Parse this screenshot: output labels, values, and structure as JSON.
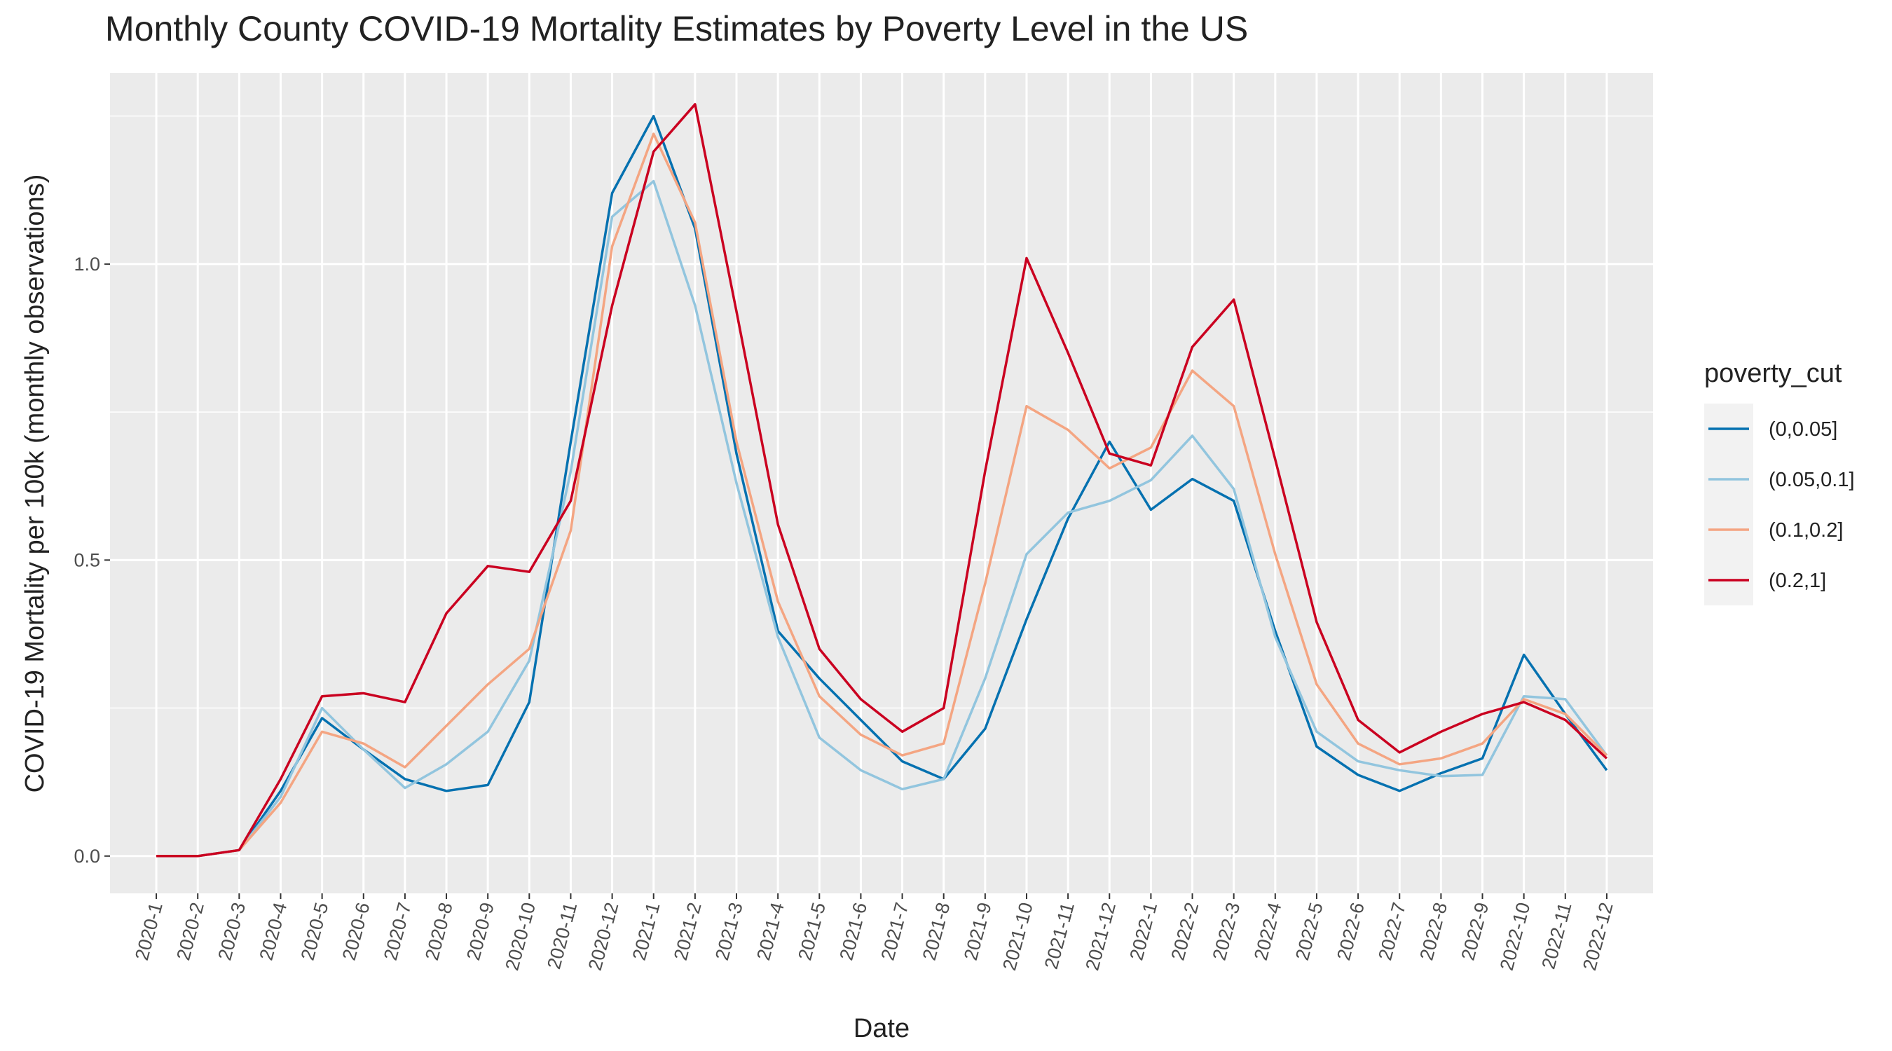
{
  "chart_data": {
    "type": "line",
    "title": "Monthly County COVID-19 Mortality Estimates by Poverty Level in the US",
    "x_label": "Date",
    "y_label": "COVID-19 Mortality per 100k (monthly observations)",
    "legend_title": "poverty_cut",
    "legend_position": "right",
    "grid": true,
    "categories": [
      "2020-1",
      "2020-2",
      "2020-3",
      "2020-4",
      "2020-5",
      "2020-6",
      "2020-7",
      "2020-8",
      "2020-9",
      "2020-10",
      "2020-11",
      "2020-12",
      "2021-1",
      "2021-2",
      "2021-3",
      "2021-4",
      "2021-5",
      "2021-6",
      "2021-7",
      "2021-8",
      "2021-9",
      "2021-10",
      "2021-11",
      "2021-12",
      "2022-1",
      "2022-2",
      "2022-3",
      "2022-4",
      "2022-5",
      "2022-6",
      "2022-7",
      "2022-8",
      "2022-9",
      "2022-10",
      "2022-11",
      "2022-12"
    ],
    "ylim": [
      -0.063,
      1.323
    ],
    "yticks": [
      {
        "value": 0,
        "label": "0.0"
      },
      0.5,
      {
        "value": 1,
        "label": "1.0"
      }
    ],
    "minor_yticks": [
      0.25,
      0.75,
      1.25
    ],
    "series": [
      {
        "name": "(0,0.05]",
        "color": "#0571b0",
        "values": [
          0,
          0,
          0.01,
          0.11,
          0.233,
          0.18,
          0.13,
          0.11,
          0.12,
          0.26,
          0.7,
          1.12,
          1.25,
          1.06,
          0.68,
          0.38,
          0.3,
          0.23,
          0.16,
          0.13,
          0.215,
          0.4,
          0.57,
          0.7,
          0.585,
          0.637,
          0.6,
          0.38,
          0.185,
          0.137,
          0.11,
          0.14,
          0.165,
          0.34,
          0.24,
          0.145
        ]
      },
      {
        "name": "(0.05,0.1]",
        "color": "#92c5de",
        "values": [
          0,
          0,
          0.01,
          0.1,
          0.25,
          0.18,
          0.115,
          0.155,
          0.21,
          0.33,
          0.65,
          1.08,
          1.14,
          0.93,
          0.63,
          0.37,
          0.2,
          0.145,
          0.113,
          0.13,
          0.3,
          0.51,
          0.58,
          0.6,
          0.635,
          0.71,
          0.62,
          0.37,
          0.21,
          0.16,
          0.145,
          0.135,
          0.137,
          0.27,
          0.265,
          0.17
        ]
      },
      {
        "name": "(0.1,0.2]",
        "color": "#f4a582",
        "values": [
          0,
          0,
          0.01,
          0.09,
          0.21,
          0.19,
          0.15,
          0.22,
          0.29,
          0.35,
          0.55,
          1.03,
          1.22,
          1.07,
          0.7,
          0.43,
          0.27,
          0.205,
          0.17,
          0.19,
          0.46,
          0.76,
          0.72,
          0.655,
          0.69,
          0.82,
          0.76,
          0.51,
          0.29,
          0.19,
          0.155,
          0.165,
          0.19,
          0.265,
          0.24,
          0.17
        ]
      },
      {
        "name": "(0.2,1]",
        "color": "#ca0020",
        "values": [
          0,
          0,
          0.01,
          0.13,
          0.27,
          0.275,
          0.26,
          0.41,
          0.49,
          0.48,
          0.6,
          0.93,
          1.19,
          1.27,
          0.92,
          0.56,
          0.35,
          0.265,
          0.21,
          0.25,
          0.65,
          1.01,
          0.85,
          0.68,
          0.66,
          0.86,
          0.94,
          0.67,
          0.395,
          0.23,
          0.175,
          0.21,
          0.24,
          0.26,
          0.23,
          0.165
        ]
      }
    ]
  }
}
